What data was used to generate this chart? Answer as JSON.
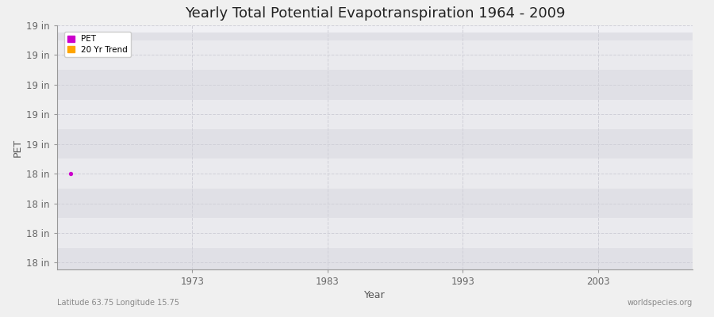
{
  "title": "Yearly Total Potential Evapotranspiration 1964 - 2009",
  "xlabel": "Year",
  "ylabel": "PET",
  "fig_bg_color": "#f0f0f0",
  "plot_bg_color": "#f0f0f4",
  "x_min": 1963,
  "x_max": 2010,
  "y_min": 17.72,
  "y_max": 19.48,
  "ytick_positions": [
    17.77,
    17.99,
    18.21,
    18.43,
    18.65,
    18.87,
    19.09,
    19.31,
    19.53
  ],
  "ytick_labels": [
    "18 in",
    "18 in",
    "18 in",
    "18 in",
    "19 in",
    "19 in",
    "19 in",
    "19 in",
    "19 in"
  ],
  "xtick_values": [
    1973,
    1983,
    1993,
    2003
  ],
  "xtick_labels": [
    "1973",
    "1983",
    "1993",
    "2003"
  ],
  "pet_x": [
    1964
  ],
  "pet_y": [
    18.43
  ],
  "pet_color": "#cc00cc",
  "trend_color": "#ffa500",
  "legend_pet_label": "PET",
  "legend_trend_label": "20 Yr Trend",
  "subtitle_left": "Latitude 63.75 Longitude 15.75",
  "subtitle_right": "worldspecies.org",
  "band_light": "#eaeaee",
  "band_dark": "#e0e0e6",
  "grid_color": "#d0d0d8",
  "title_fontsize": 13,
  "label_fontsize": 9,
  "tick_fontsize": 8.5,
  "annot_fontsize": 7
}
